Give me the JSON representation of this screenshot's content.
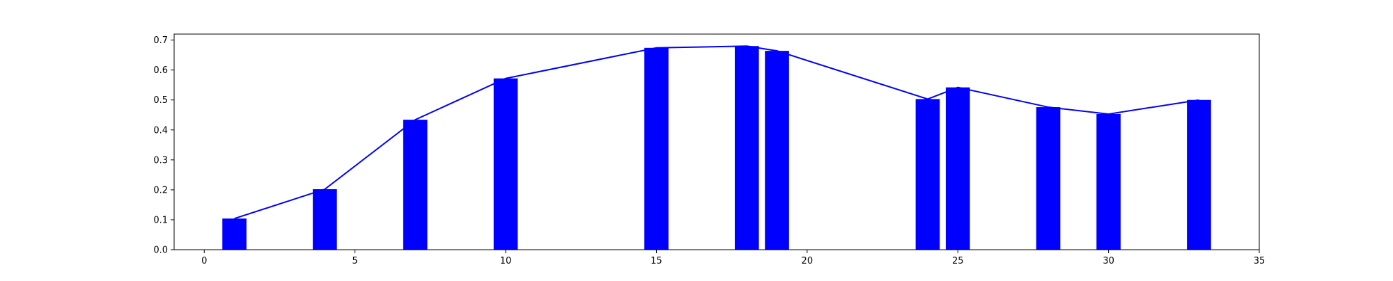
{
  "chart_data": {
    "type": "bar",
    "title": "",
    "xlabel": "",
    "ylabel": "",
    "xlim": [
      -1,
      35
    ],
    "ylim": [
      0,
      0.72
    ],
    "grid": false,
    "x_ticks": [
      0,
      5,
      10,
      15,
      20,
      25,
      30,
      35
    ],
    "y_ticks": [
      0.0,
      0.1,
      0.2,
      0.3,
      0.4,
      0.5,
      0.6,
      0.7
    ],
    "x_tick_labels": [
      "0",
      "5",
      "10",
      "15",
      "20",
      "25",
      "30",
      "35"
    ],
    "y_tick_labels": [
      "0.0",
      "0.1",
      "0.2",
      "0.3",
      "0.4",
      "0.5",
      "0.6",
      "0.7"
    ],
    "bar_color": "#0000ff",
    "line_color": "#0000ff",
    "bar_width": 0.8,
    "series": [
      {
        "type": "bar",
        "x": [
          1,
          4,
          7,
          10,
          15,
          18,
          19,
          24,
          25,
          28,
          30,
          33
        ],
        "values": [
          0.104,
          0.202,
          0.434,
          0.572,
          0.674,
          0.68,
          0.664,
          0.503,
          0.542,
          0.476,
          0.453,
          0.5
        ]
      },
      {
        "type": "line",
        "x": [
          1,
          4,
          7,
          10,
          15,
          18,
          19,
          24,
          25,
          28,
          30,
          33
        ],
        "values": [
          0.104,
          0.202,
          0.434,
          0.572,
          0.674,
          0.68,
          0.664,
          0.503,
          0.542,
          0.476,
          0.453,
          0.5
        ]
      }
    ]
  }
}
